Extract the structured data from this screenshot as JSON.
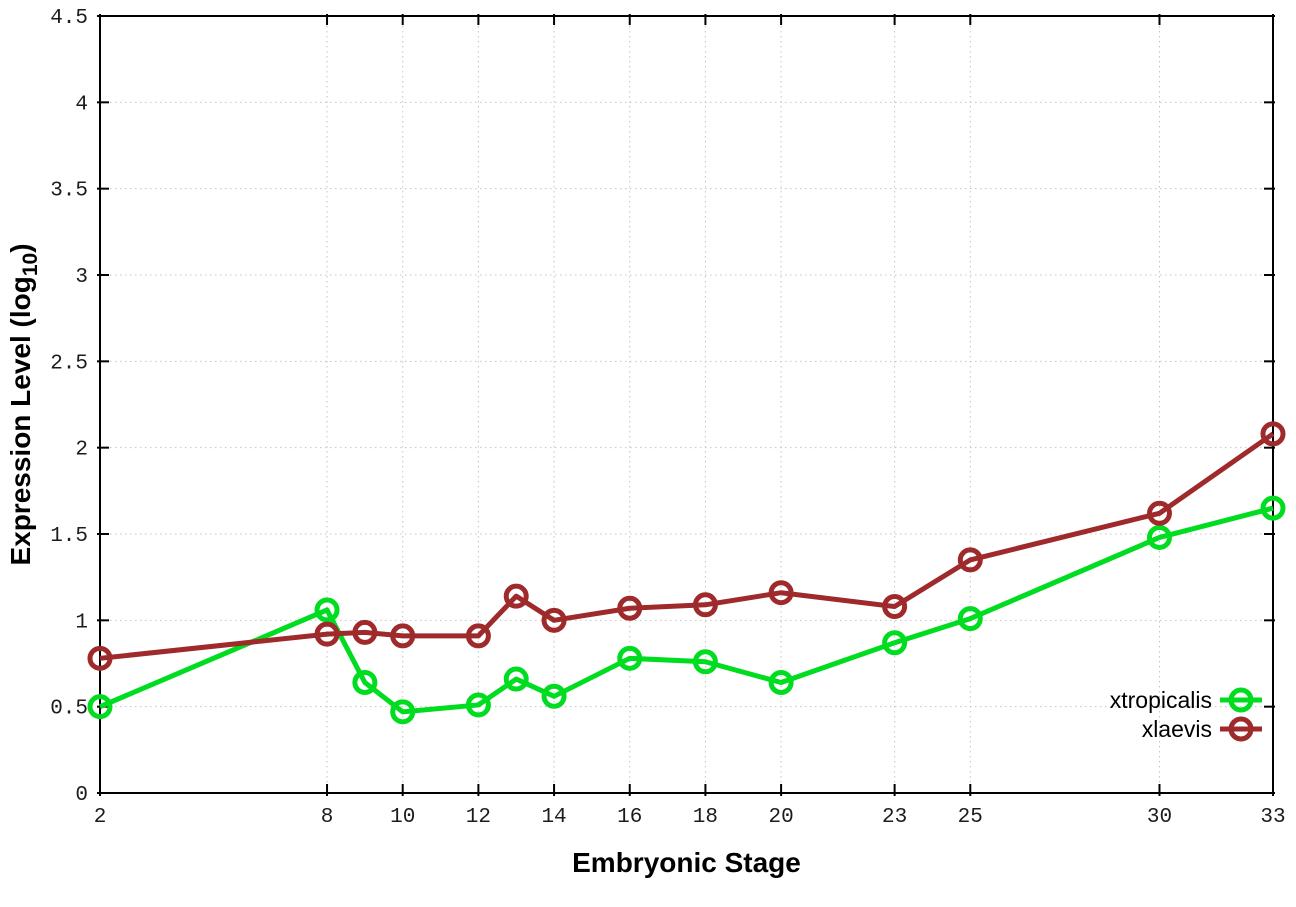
{
  "figure": {
    "background": "#ffffff",
    "text_color": "#1c1c1c"
  },
  "chart_data": {
    "type": "line",
    "title": "",
    "xlabel": "Embryonic Stage",
    "ylabel": {
      "main": "Expression Level (log",
      "sub": "10",
      "end": ")"
    },
    "xlim": [
      2,
      33
    ],
    "ylim": [
      0,
      4.5
    ],
    "grid": true,
    "legend_position": "inside bottom-right",
    "x": [
      2,
      8,
      9,
      10,
      12,
      13,
      14,
      16,
      18,
      20,
      23,
      25,
      30,
      33
    ],
    "xticks": [
      2,
      8,
      10,
      12,
      14,
      16,
      18,
      20,
      23,
      25,
      30,
      33
    ],
    "xtick_labels": [
      "2",
      "8",
      "10",
      "12",
      "14",
      "16",
      "18",
      "20",
      "23",
      "25",
      "30",
      "33"
    ],
    "yticks": [
      0,
      0.5,
      1,
      1.5,
      2,
      2.5,
      3,
      3.5,
      4,
      4.5
    ],
    "ytick_labels": [
      "0",
      "0.5",
      "1",
      "1.5",
      "2",
      "2.5",
      "3",
      "3.5",
      "4",
      "4.5"
    ],
    "series": [
      {
        "name": "xtropicalis",
        "color": "#00dc20",
        "marker": "open-circle",
        "values": [
          0.5,
          1.06,
          0.64,
          0.47,
          0.51,
          0.66,
          0.56,
          0.78,
          0.76,
          0.64,
          0.87,
          1.01,
          1.48,
          1.65
        ]
      },
      {
        "name": "xlaevis",
        "color": "#9e2a2b",
        "marker": "open-circle",
        "values": [
          0.78,
          0.92,
          0.93,
          0.91,
          0.91,
          1.14,
          1.0,
          1.07,
          1.09,
          1.16,
          1.08,
          1.35,
          1.62,
          2.08
        ]
      }
    ]
  }
}
